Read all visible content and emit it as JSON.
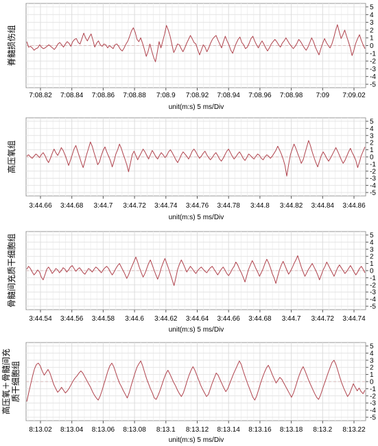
{
  "chart_data": [
    {
      "type": "line",
      "title": "脊髓损伤组",
      "xlabel": "unit(m:s) 5 ms/Div",
      "x_ticks": [
        "7:08.82",
        "7:08.84",
        "7:08.86",
        "7:08.88",
        "7:08.9",
        "7:08.92",
        "7:08.94",
        "7:08.96",
        "7:08.98",
        "7:09",
        "7:09.02"
      ],
      "y_ticks": [
        5,
        4,
        3,
        2,
        1,
        0,
        -1,
        -2,
        -3,
        -4,
        -5
      ],
      "ylim": [
        -5,
        5
      ],
      "grid": true,
      "line_color": "#b0434d",
      "series": [
        {
          "values": [
            0.5,
            -0.2,
            -0.1,
            -0.3,
            -0.6,
            -0.4,
            -0.3,
            0.1,
            -0.2,
            -0.4,
            -0.3,
            -0.1,
            0.1,
            -0.1,
            -0.3,
            -0.5,
            -0.2,
            0.2,
            0.4,
            0.1,
            -0.2,
            0.2,
            0.5,
            0.3,
            -0.1,
            0.5,
            0.8,
            0.9,
            0.4,
            0.2,
            0.9,
            1.6,
            1.0,
            0.6,
            1.1,
            1.5,
            0.7,
            -0.2,
            0.3,
            0.6,
            0.1,
            -0.1,
            0.2,
            0.1,
            -0.3,
            0.0,
            -0.2,
            -0.4,
            0.1,
            0.2,
            -0.1,
            -0.5,
            -0.7,
            -0.3,
            0.2,
            0.6,
            1.2,
            1.9,
            2.3,
            1.7,
            0.8,
            0.5,
            1.0,
            0.3,
            -0.5,
            -1.4,
            -0.8,
            0.2,
            -0.7,
            -1.5,
            -2.1,
            -0.9,
            0.5,
            -0.3,
            0.6,
            1.5,
            2.6,
            2.0,
            1.2,
            0.1,
            -0.9,
            -0.4,
            0.2,
            0.1,
            -0.4,
            -0.8,
            -0.3,
            0.3,
            0.8,
            1.3,
            0.9,
            0.4,
            0.2,
            -0.5,
            -1.2,
            -0.6,
            0.1,
            -0.2,
            -0.8,
            -0.3,
            0.3,
            0.8,
            1.1,
            1.3,
            0.7,
            0.2,
            -0.3,
            0.5,
            1.2,
            0.6,
            0.1,
            -0.6,
            -1.0,
            -0.3,
            0.3,
            0.8,
            1.1,
            0.4,
            0.1,
            -0.4,
            -0.2,
            0.3,
            0.9,
            1.2,
            0.6,
            0.1,
            -0.3,
            0.2,
            0.6,
            0.2,
            -0.3,
            -0.7,
            -0.3,
            0.2,
            0.5,
            0.8,
            0.5,
            0.1,
            -0.2,
            0.3,
            0.6,
            1.0,
            0.6,
            0.2,
            -0.1,
            -0.4,
            -0.1,
            0.3,
            0.8,
            0.5,
            0.1,
            -0.3,
            -0.6,
            -0.2,
            0.4,
            1.0,
            0.5,
            -0.2,
            -0.7,
            -1.2,
            -0.4,
            0.3,
            0.9,
            0.4,
            0.0,
            -0.3,
            0.2,
            1.0,
            1.9,
            2.7,
            1.8,
            0.9,
            1.4,
            2.0,
            1.2,
            0.5,
            -0.3,
            -1.3,
            -0.6,
            0.3,
            0.9,
            1.4,
            0.7,
            0.1,
            -0.4
          ]
        }
      ]
    },
    {
      "type": "line",
      "title": "高压氧组",
      "xlabel": "unit(m:s) 5 ms/Div",
      "x_ticks": [
        "3:44.66",
        "3:44.68",
        "3:44.7",
        "3:44.72",
        "3:44.74",
        "3:44.76",
        "3:44.78",
        "3:44.8",
        "3:44.82",
        "3:44.84",
        "3:44.86"
      ],
      "y_ticks": [
        5,
        4,
        3,
        2,
        1,
        0,
        -1,
        -2,
        -3,
        -4,
        -5
      ],
      "ylim": [
        -5,
        5
      ],
      "grid": true,
      "line_color": "#b0434d",
      "series": [
        {
          "values": [
            0.1,
            0.3,
            0.0,
            -0.2,
            0.1,
            0.4,
            0.2,
            -0.1,
            0.3,
            0.6,
            0.2,
            -0.4,
            -0.8,
            -0.2,
            0.5,
            1.1,
            0.6,
            0.2,
            0.7,
            1.3,
            0.9,
            0.3,
            -0.4,
            -1.2,
            -0.5,
            0.3,
            1.1,
            1.6,
            0.8,
            0.0,
            -0.8,
            -1.5,
            -0.6,
            0.4,
            1.2,
            2.1,
            1.5,
            0.6,
            -0.2,
            -1.1,
            -0.7,
            0.2,
            0.9,
            1.4,
            0.7,
            0.1,
            -0.5,
            -1.4,
            -0.6,
            0.4,
            1.0,
            1.8,
            1.2,
            0.4,
            -0.3,
            -1.1,
            -2.1,
            -0.9,
            0.3,
            0.8,
            0.2,
            -0.4,
            0.1,
            0.6,
            1.1,
            0.7,
            0.2,
            -0.3,
            0.3,
            0.9,
            0.5,
            0.0,
            -0.3,
            0.2,
            0.6,
            0.3,
            -0.1,
            0.2,
            0.7,
            1.0,
            0.6,
            0.1,
            -0.4,
            -0.8,
            -0.3,
            0.3,
            0.7,
            0.4,
            0.1,
            -0.3,
            0.2,
            0.8,
            1.1,
            0.7,
            0.2,
            -0.2,
            0.1,
            0.5,
            0.8,
            0.3,
            -0.1,
            -0.4,
            -0.1,
            0.3,
            0.6,
            0.2,
            -0.3,
            -0.6,
            -0.2,
            0.3,
            0.8,
            1.1,
            0.6,
            0.1,
            -0.3,
            0.0,
            0.4,
            0.7,
            0.3,
            -0.2,
            -0.5,
            -0.1,
            0.4,
            0.2,
            -0.1,
            -0.3,
            0.1,
            0.4,
            0.2,
            -0.2,
            -0.4,
            0.0,
            0.3,
            0.1,
            -0.2,
            0.1,
            0.5,
            0.9,
            1.5,
            1.0,
            0.4,
            -0.3,
            -1.2,
            -2.7,
            -1.1,
            0.3,
            1.1,
            1.8,
            1.2,
            0.5,
            -0.2,
            -0.9,
            -0.4,
            0.5,
            1.4,
            2.3,
            1.6,
            0.7,
            -0.1,
            -0.8,
            -1.4,
            -0.6,
            0.2,
            0.7,
            0.3,
            -0.2,
            -0.6,
            -0.2,
            0.3,
            0.8,
            1.3,
            0.8,
            0.2,
            -0.4,
            -0.9,
            -0.5,
            0.1,
            0.7,
            1.2,
            0.6,
            0.1,
            -0.5,
            -1.5,
            -0.7,
            0.2,
            0.8,
            1.4
          ]
        }
      ]
    },
    {
      "type": "line",
      "title": "骨髓间充质干细胞组",
      "xlabel": "unit(m:s) 5 ms/Div",
      "x_ticks": [
        "3:44.54",
        "3:44.56",
        "3:44.58",
        "3:44.6",
        "3:44.62",
        "3:44.64",
        "3:44.66",
        "3:44.68",
        "3:44.7",
        "3:44.72",
        "3:44.74"
      ],
      "y_ticks": [
        5,
        4,
        3,
        2,
        1,
        0,
        -1,
        -2,
        -3,
        -4,
        -5
      ],
      "ylim": [
        -5,
        5
      ],
      "grid": true,
      "line_color": "#b0434d",
      "series": [
        {
          "values": [
            0.2,
            0.6,
            0.3,
            -0.2,
            -0.6,
            -0.3,
            0.1,
            -0.2,
            -0.9,
            -1.3,
            -0.6,
            0.2,
            0.5,
            0.1,
            -0.4,
            -0.1,
            0.3,
            0.1,
            -0.3,
            0.0,
            0.4,
            0.2,
            -0.2,
            0.1,
            0.5,
            0.7,
            0.3,
            -0.1,
            0.2,
            0.4,
            0.1,
            -0.3,
            -0.5,
            -0.1,
            0.3,
            0.1,
            -0.2,
            0.2,
            0.5,
            0.3,
            0.0,
            -0.3,
            0.1,
            0.4,
            0.6,
            0.3,
            -0.2,
            -0.6,
            -0.2,
            0.3,
            0.7,
            1.0,
            0.5,
            0.0,
            -0.5,
            -1.1,
            -0.6,
            0.1,
            0.7,
            1.3,
            1.9,
            1.2,
            0.4,
            -0.3,
            -0.9,
            -0.4,
            0.3,
            1.0,
            1.5,
            0.8,
            0.1,
            -0.6,
            -1.2,
            -0.5,
            0.4,
            1.1,
            1.7,
            1.0,
            0.3,
            -0.5,
            -1.3,
            -2.1,
            -1.0,
            0.2,
            0.9,
            1.5,
            1.0,
            0.4,
            -0.2,
            0.2,
            0.6,
            0.3,
            -0.1,
            -0.4,
            0.0,
            0.3,
            0.5,
            0.2,
            -0.1,
            -0.3,
            0.1,
            0.4,
            0.6,
            0.2,
            -0.2,
            -0.6,
            -0.2,
            0.2,
            0.5,
            0.1,
            -0.4,
            -0.7,
            -0.3,
            0.2,
            0.6,
            1.2,
            0.8,
            0.2,
            -0.3,
            -0.9,
            -1.6,
            -0.7,
            0.2,
            0.8,
            1.4,
            0.9,
            0.3,
            -0.2,
            -0.8,
            -0.3,
            0.3,
            1.0,
            1.6,
            1.1,
            0.4,
            -0.4,
            -1.0,
            -1.8,
            -0.8,
            0.1,
            0.8,
            1.3,
            0.7,
            0.1,
            -0.5,
            -0.1,
            0.4,
            1.0,
            1.5,
            2.1,
            1.3,
            0.5,
            -0.2,
            -0.8,
            -0.3,
            0.2,
            0.6,
            1.0,
            0.5,
            0.0,
            -0.6,
            -1.3,
            -0.6,
            0.1,
            0.6,
            1.2,
            0.7,
            0.2,
            -0.3,
            -0.8,
            -0.2,
            0.4,
            0.8,
            0.4,
            0.0,
            -0.4,
            -0.1,
            0.3,
            0.7,
            0.3,
            -0.2,
            -0.6,
            -0.2,
            0.3,
            0.6,
            0.2,
            -0.3
          ]
        }
      ]
    },
    {
      "type": "line",
      "title": "高压氧＋骨髓间充质干细胞组",
      "xlabel": "unit(m:s) 5 ms/Div",
      "x_ticks": [
        "8:13.02",
        "8:13.04",
        "8:13.06",
        "8:13.08",
        "8:13.1",
        "8:13.12",
        "8:13.14",
        "8:13.16",
        "8:13.18",
        "8:13.2",
        "8:13.22"
      ],
      "y_ticks": [
        5,
        4,
        3,
        2,
        1,
        0,
        -1,
        -2,
        -3,
        -4,
        -5
      ],
      "ylim": [
        -5,
        5
      ],
      "grid": true,
      "line_color": "#b0434d",
      "series": [
        {
          "values": [
            -2.8,
            -1.6,
            -0.4,
            0.8,
            1.8,
            2.4,
            2.6,
            2.2,
            1.5,
            0.9,
            1.3,
            1.7,
            1.2,
            0.4,
            -0.4,
            -1.0,
            -1.5,
            -1.2,
            -0.8,
            -1.2,
            -1.6,
            -1.3,
            -0.9,
            -0.4,
            0.1,
            0.5,
            0.8,
            1.2,
            1.5,
            1.2,
            0.7,
            0.2,
            -0.3,
            -0.8,
            -1.4,
            -1.9,
            -2.3,
            -2.6,
            -2.0,
            -1.2,
            -0.3,
            0.6,
            1.5,
            2.2,
            2.6,
            2.1,
            1.3,
            0.5,
            -0.2,
            -0.7,
            -1.3,
            -1.8,
            -2.3,
            -1.6,
            -0.6,
            0.3,
            1.2,
            2.0,
            2.5,
            2.9,
            2.2,
            1.3,
            0.4,
            -0.3,
            -1.0,
            -1.6,
            -2.3,
            -2.5,
            -1.9,
            -1.2,
            -0.4,
            0.4,
            1.1,
            1.6,
            1.1,
            0.5,
            -0.1,
            -0.6,
            -1.2,
            -1.7,
            -2.1,
            -1.6,
            -0.8,
            0.1,
            0.9,
            1.6,
            2.1,
            1.6,
            0.9,
            0.2,
            -0.5,
            -1.1,
            -1.6,
            -2.1,
            -1.8,
            -1.0,
            -0.2,
            0.5,
            1.2,
            0.9,
            0.3,
            -0.3,
            -0.9,
            -1.4,
            -1.0,
            -0.3,
            0.4,
            1.1,
            1.7,
            2.3,
            2.9,
            2.4,
            1.5,
            0.7,
            -0.1,
            -0.8,
            -1.5,
            -2.2,
            -2.6,
            -2.0,
            -1.1,
            -0.2,
            0.6,
            1.3,
            1.9,
            2.3,
            1.7,
            1.0,
            0.4,
            -0.2,
            0.2,
            0.6,
            0.3,
            -0.2,
            -0.7,
            -1.2,
            -1.7,
            -2.2,
            -1.6,
            -0.8,
            0.1,
            0.9,
            1.6,
            2.1,
            1.5,
            0.8,
            0.1,
            -0.5,
            -1.1,
            -1.7,
            -2.2,
            -2.5,
            -1.9,
            -1.1,
            -0.3,
            0.5,
            1.3,
            2.0,
            2.7,
            3.0,
            2.4,
            1.5,
            0.6,
            -0.2,
            -0.9,
            -1.5,
            -2.1,
            -1.7,
            -1.0,
            -0.3,
            -0.8,
            -1.3,
            -0.9,
            -1.4,
            -1.7,
            -1.2
          ]
        }
      ]
    }
  ]
}
